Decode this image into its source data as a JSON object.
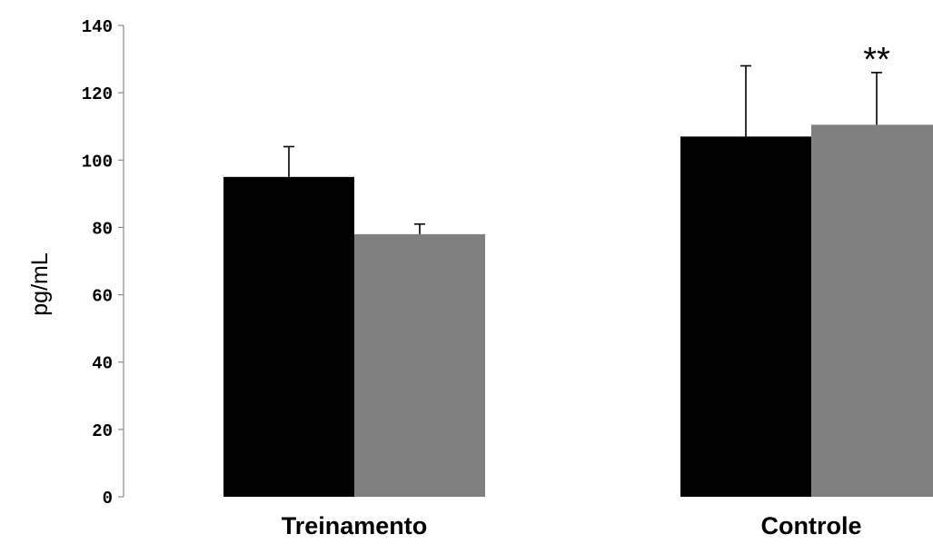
{
  "chart_data": {
    "type": "bar",
    "title": "",
    "xlabel": "",
    "ylabel": "pg/mL",
    "ylim": [
      0,
      140
    ],
    "yticks": [
      0,
      20,
      40,
      60,
      80,
      100,
      120,
      140
    ],
    "categories": [
      "Treinamento",
      "Controle"
    ],
    "series": [
      {
        "color": "#000000",
        "values": [
          95,
          107
        ],
        "errors": [
          9,
          21
        ]
      },
      {
        "color": "#808080",
        "values": [
          78,
          110.5
        ],
        "errors": [
          3,
          15.5
        ]
      }
    ],
    "annotations": [
      {
        "text": "**",
        "category": "Controle",
        "series_index": 1
      }
    ],
    "grid": false,
    "legend": "none"
  }
}
